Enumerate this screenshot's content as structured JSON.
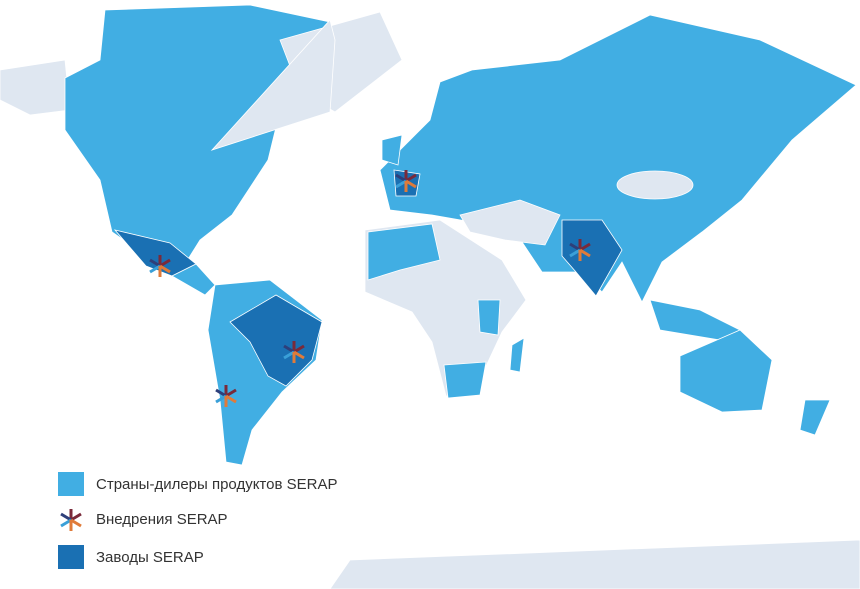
{
  "legend": {
    "items": [
      {
        "label": "Страны-дилеры продуктов SERAP"
      },
      {
        "label": "Внедрения SERAP"
      },
      {
        "label": "Заводы SERAP"
      }
    ]
  }
}
